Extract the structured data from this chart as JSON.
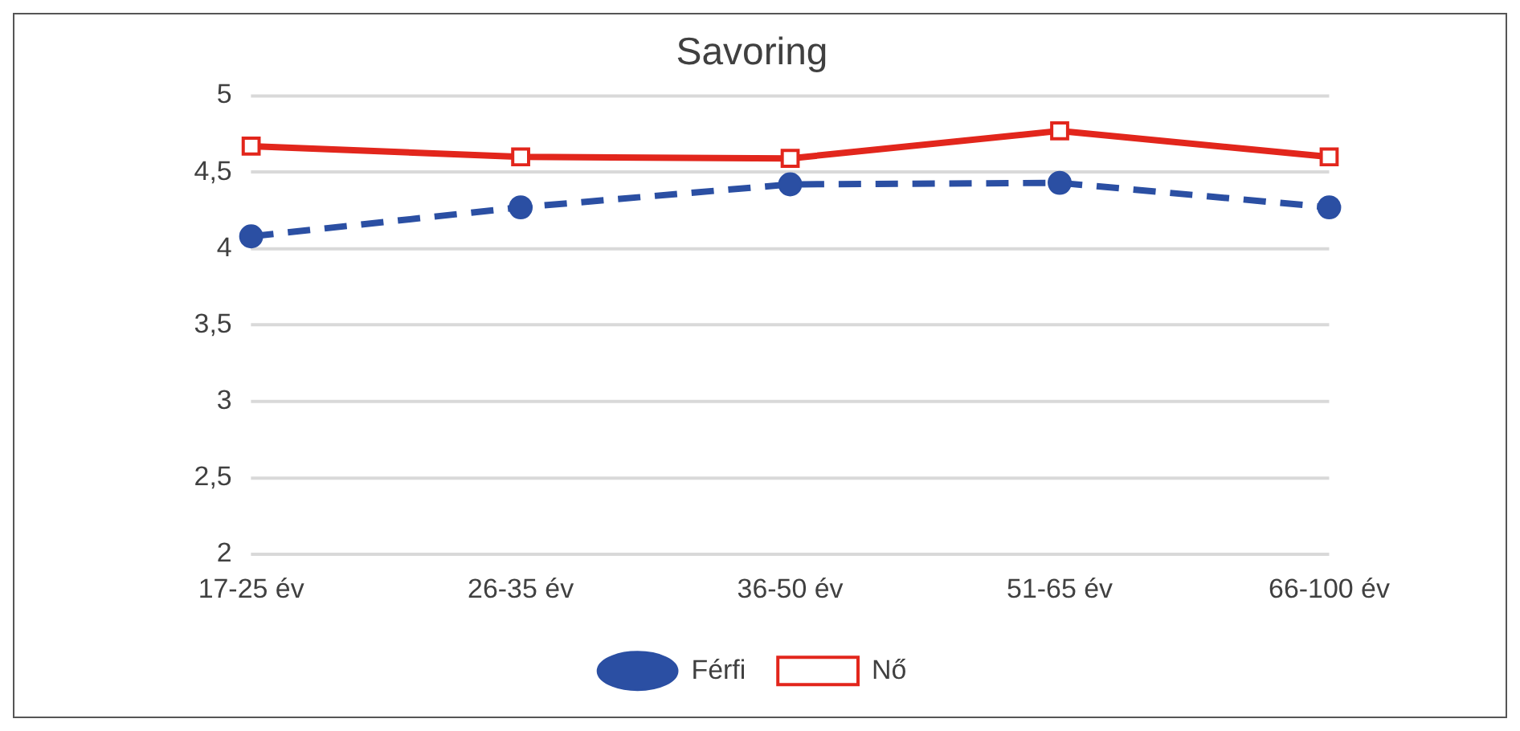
{
  "chart_data": {
    "type": "line",
    "title": "Savoring",
    "categories": [
      "17-25 év",
      "26-35 év",
      "36-50 év",
      "51-65 év",
      "66-100 év"
    ],
    "series": [
      {
        "name": "Férfi",
        "color": "#2b4fa3",
        "values": [
          4.08,
          4.27,
          4.42,
          4.43,
          4.27
        ],
        "marker": "circle",
        "line_style": "dashed"
      },
      {
        "name": "Nő",
        "color": "#e2261c",
        "values": [
          4.67,
          4.6,
          4.59,
          4.77,
          4.6
        ],
        "marker": "square",
        "line_style": "solid"
      }
    ],
    "ylim": [
      2,
      5
    ],
    "yticks": [
      {
        "value": 2,
        "label": "2"
      },
      {
        "value": 2.5,
        "label": "2,5"
      },
      {
        "value": 3,
        "label": "3"
      },
      {
        "value": 3.5,
        "label": "3,5"
      },
      {
        "value": 4,
        "label": "4"
      },
      {
        "value": 4.5,
        "label": "4,5"
      },
      {
        "value": 5,
        "label": "5"
      }
    ],
    "grid": "y",
    "legend": "bottom"
  }
}
